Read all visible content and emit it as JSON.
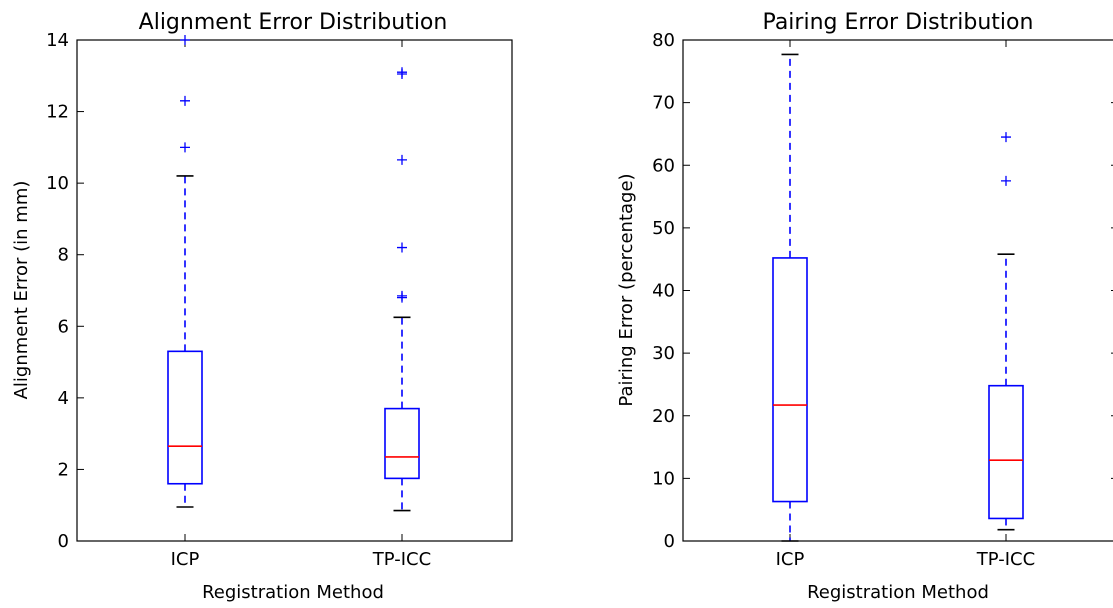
{
  "chart_data": [
    {
      "type": "boxplot",
      "title": "Alignment Error Distribution",
      "xlabel": "Registration Method",
      "ylabel": "Alignment Error (in mm)",
      "ylim": [
        0,
        14
      ],
      "yticks": [
        0,
        2,
        4,
        6,
        8,
        10,
        12,
        14
      ],
      "grid": false,
      "categories": [
        "ICP",
        "TP-ICC"
      ],
      "series": [
        {
          "category": "ICP",
          "whisker_low": 0.95,
          "q1": 1.6,
          "median": 2.65,
          "q3": 5.3,
          "whisker_high": 10.2,
          "outliers": [
            11.0,
            12.3,
            14.0
          ]
        },
        {
          "category": "TP-ICC",
          "whisker_low": 0.85,
          "q1": 1.75,
          "median": 2.35,
          "q3": 3.7,
          "whisker_high": 6.25,
          "outliers": [
            6.8,
            6.85,
            8.2,
            10.65,
            13.05,
            13.1
          ]
        }
      ]
    },
    {
      "type": "boxplot",
      "title": "Pairing Error Distribution",
      "xlabel": "Registration Method",
      "ylabel": "Pairing Error (percentage)",
      "ylim": [
        0,
        80
      ],
      "yticks": [
        0,
        10,
        20,
        30,
        40,
        50,
        60,
        70,
        80
      ],
      "grid": false,
      "categories": [
        "ICP",
        "TP-ICC"
      ],
      "series": [
        {
          "category": "ICP",
          "whisker_low": 0,
          "q1": 6.3,
          "median": 21.7,
          "q3": 45.2,
          "whisker_high": 77.7,
          "outliers": []
        },
        {
          "category": "TP-ICC",
          "whisker_low": 1.8,
          "q1": 3.6,
          "median": 12.9,
          "q3": 24.8,
          "whisker_high": 45.8,
          "outliers": [
            57.5,
            64.5
          ]
        }
      ]
    }
  ],
  "colors": {
    "box": "#0000ff",
    "median": "#ff0000",
    "whisker_cap": "#000000",
    "outlier": "#0000ff",
    "axes": "#000000"
  }
}
